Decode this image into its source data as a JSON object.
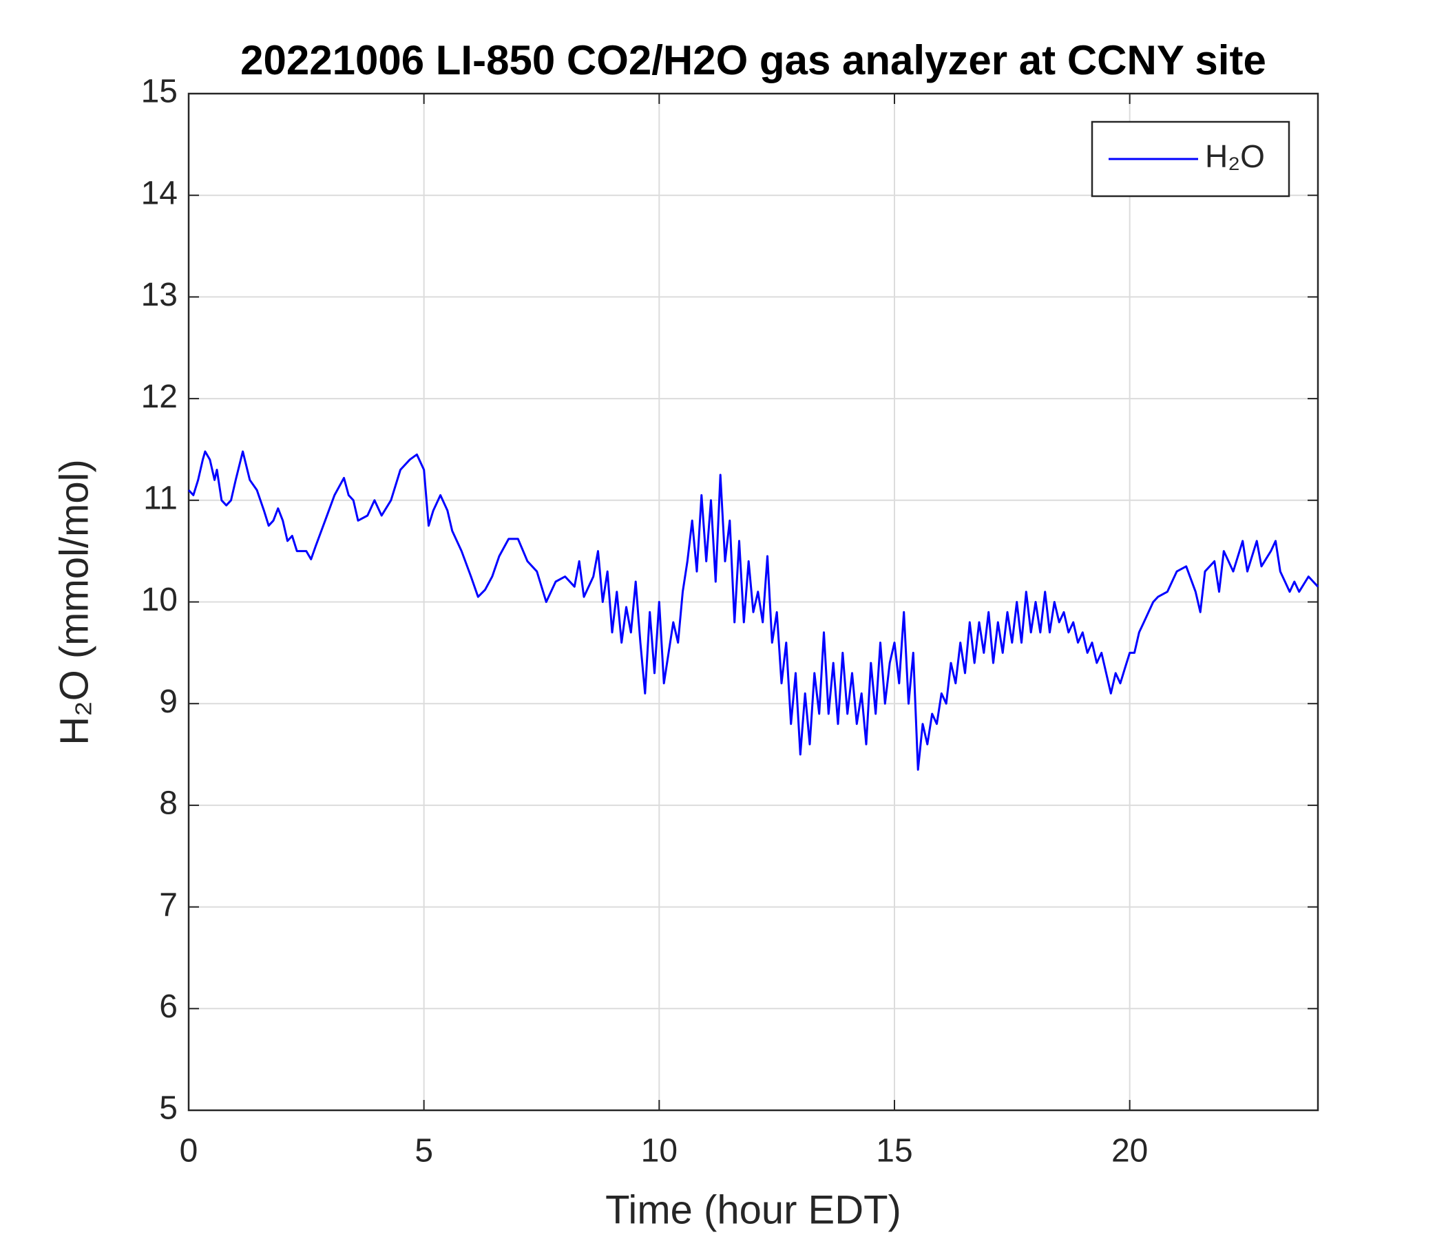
{
  "chart_data": {
    "type": "line",
    "title": "20221006 LI-850 CO2/H2O gas analyzer at CCNY site",
    "xlabel": "Time (hour EDT)",
    "ylabel": "H₂O (mmol/mol)",
    "xlim": [
      0,
      24
    ],
    "xticks": [
      0,
      5,
      10,
      15,
      20
    ],
    "ylim": [
      5,
      15
    ],
    "yticks": [
      5,
      6,
      7,
      8,
      9,
      10,
      11,
      12,
      13,
      14,
      15
    ],
    "grid": true,
    "legend": "upper right",
    "x": [
      0,
      0.1,
      0.2,
      0.3,
      0.35,
      0.45,
      0.55,
      0.6,
      0.7,
      0.8,
      0.9,
      1.0,
      1.15,
      1.3,
      1.45,
      1.6,
      1.7,
      1.8,
      1.9,
      2.0,
      2.1,
      2.2,
      2.3,
      2.5,
      2.6,
      2.7,
      2.9,
      3.1,
      3.3,
      3.4,
      3.5,
      3.6,
      3.8,
      3.95,
      4.1,
      4.3,
      4.5,
      4.7,
      4.85,
      5.0,
      5.1,
      5.2,
      5.35,
      5.5,
      5.6,
      5.8,
      6.0,
      6.15,
      6.3,
      6.45,
      6.6,
      6.8,
      7.0,
      7.2,
      7.4,
      7.6,
      7.8,
      8.0,
      8.2,
      8.3,
      8.4,
      8.6,
      8.7,
      8.8,
      8.9,
      9.0,
      9.1,
      9.2,
      9.3,
      9.4,
      9.5,
      9.6,
      9.7,
      9.8,
      9.9,
      10.0,
      10.1,
      10.2,
      10.3,
      10.4,
      10.5,
      10.6,
      10.7,
      10.8,
      10.9,
      11.0,
      11.1,
      11.2,
      11.3,
      11.4,
      11.5,
      11.6,
      11.7,
      11.8,
      11.9,
      12.0,
      12.1,
      12.2,
      12.3,
      12.4,
      12.5,
      12.6,
      12.7,
      12.8,
      12.9,
      13.0,
      13.1,
      13.2,
      13.3,
      13.4,
      13.5,
      13.6,
      13.7,
      13.8,
      13.9,
      14.0,
      14.1,
      14.2,
      14.3,
      14.4,
      14.5,
      14.6,
      14.7,
      14.8,
      14.9,
      15.0,
      15.1,
      15.2,
      15.3,
      15.4,
      15.5,
      15.6,
      15.7,
      15.8,
      15.9,
      16.0,
      16.1,
      16.2,
      16.3,
      16.4,
      16.5,
      16.6,
      16.7,
      16.8,
      16.9,
      17.0,
      17.1,
      17.2,
      17.3,
      17.4,
      17.5,
      17.6,
      17.7,
      17.8,
      17.9,
      18.0,
      18.1,
      18.2,
      18.3,
      18.4,
      18.5,
      18.6,
      18.7,
      18.8,
      18.9,
      19.0,
      19.1,
      19.2,
      19.3,
      19.4,
      19.5,
      19.6,
      19.7,
      19.8,
      19.9,
      20.0,
      20.1,
      20.2,
      20.3,
      20.4,
      20.5,
      20.6,
      20.8,
      21.0,
      21.2,
      21.4,
      21.5,
      21.6,
      21.8,
      21.9,
      22.0,
      22.2,
      22.4,
      22.5,
      22.7,
      22.8,
      23.0,
      23.1,
      23.2,
      23.3,
      23.4,
      23.5,
      23.6,
      23.8,
      24.0
    ],
    "series": [
      {
        "name": "H₂O",
        "color": "#0000ff",
        "values": [
          11.1,
          11.05,
          11.2,
          11.4,
          11.48,
          11.4,
          11.2,
          11.3,
          11.0,
          10.95,
          11.0,
          11.2,
          11.48,
          11.2,
          11.1,
          10.9,
          10.75,
          10.8,
          10.92,
          10.8,
          10.6,
          10.65,
          10.5,
          10.5,
          10.42,
          10.55,
          10.8,
          11.05,
          11.22,
          11.05,
          11.0,
          10.8,
          10.85,
          11.0,
          10.85,
          11.0,
          11.3,
          11.4,
          11.45,
          11.3,
          10.75,
          10.9,
          11.05,
          10.9,
          10.7,
          10.5,
          10.25,
          10.05,
          10.12,
          10.25,
          10.45,
          10.62,
          10.62,
          10.4,
          10.3,
          10.0,
          10.2,
          10.25,
          10.15,
          10.4,
          10.05,
          10.25,
          10.5,
          10.0,
          10.3,
          9.7,
          10.1,
          9.6,
          9.95,
          9.7,
          10.2,
          9.6,
          9.1,
          9.9,
          9.3,
          10.0,
          9.2,
          9.5,
          9.8,
          9.6,
          10.1,
          10.4,
          10.8,
          10.3,
          11.05,
          10.4,
          11.0,
          10.2,
          11.25,
          10.4,
          10.8,
          9.8,
          10.6,
          9.8,
          10.4,
          9.9,
          10.1,
          9.8,
          10.45,
          9.6,
          9.9,
          9.2,
          9.6,
          8.8,
          9.3,
          8.5,
          9.1,
          8.6,
          9.3,
          8.9,
          9.7,
          8.9,
          9.4,
          8.8,
          9.5,
          8.9,
          9.3,
          8.8,
          9.1,
          8.6,
          9.4,
          8.9,
          9.6,
          9.0,
          9.4,
          9.6,
          9.2,
          9.9,
          9.0,
          9.5,
          8.35,
          8.8,
          8.6,
          8.9,
          8.8,
          9.1,
          9.0,
          9.4,
          9.2,
          9.6,
          9.3,
          9.8,
          9.4,
          9.8,
          9.5,
          9.9,
          9.4,
          9.8,
          9.5,
          9.9,
          9.6,
          10.0,
          9.6,
          10.1,
          9.7,
          10.0,
          9.7,
          10.1,
          9.7,
          10.0,
          9.8,
          9.9,
          9.7,
          9.8,
          9.6,
          9.7,
          9.5,
          9.6,
          9.4,
          9.5,
          9.3,
          9.1,
          9.3,
          9.2,
          9.35,
          9.5,
          9.5,
          9.7,
          9.8,
          9.9,
          10.0,
          10.05,
          10.1,
          10.3,
          10.35,
          10.1,
          9.9,
          10.3,
          10.4,
          10.1,
          10.5,
          10.3,
          10.6,
          10.3,
          10.6,
          10.35,
          10.5,
          10.6,
          10.3,
          10.2,
          10.1,
          10.2,
          10.1,
          10.25,
          10.15
        ]
      }
    ]
  }
}
